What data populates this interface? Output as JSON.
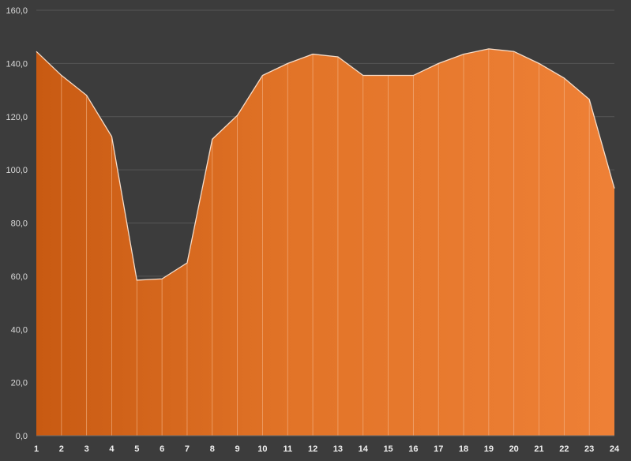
{
  "chart_data": {
    "type": "area",
    "title": "",
    "xlabel": "",
    "ylabel": "",
    "x": [
      1,
      2,
      3,
      4,
      5,
      6,
      7,
      8,
      9,
      10,
      11,
      12,
      13,
      14,
      15,
      16,
      17,
      18,
      19,
      20,
      21,
      22,
      23,
      24
    ],
    "x_tick_labels": [
      "1",
      "2",
      "3",
      "4",
      "5",
      "6",
      "7",
      "8",
      "9",
      "10",
      "11",
      "12",
      "13",
      "14",
      "15",
      "16",
      "17",
      "18",
      "19",
      "20",
      "21",
      "22",
      "23",
      "24"
    ],
    "values": [
      144.5,
      135.5,
      128,
      112.5,
      58.5,
      59,
      65,
      111.5,
      120.5,
      135.5,
      140,
      143.5,
      142.5,
      135.5,
      135.5,
      135.5,
      140,
      143.5,
      145.5,
      144.5,
      140,
      134.5,
      126.5,
      93
    ],
    "ylim": [
      0,
      160
    ],
    "y_ticks": [
      0,
      20,
      40,
      60,
      80,
      100,
      120,
      140,
      160
    ],
    "y_tick_labels": [
      "0,0",
      "20,0",
      "40,0",
      "60,0",
      "80,0",
      "100,0",
      "120,0",
      "140,0",
      "160,0"
    ],
    "grid": true,
    "legend": "none",
    "colors": {
      "background": "#3c3c3c",
      "fill_start": "#c85a12",
      "fill_end": "#ee8036",
      "outline": "#f6dcc8"
    }
  }
}
